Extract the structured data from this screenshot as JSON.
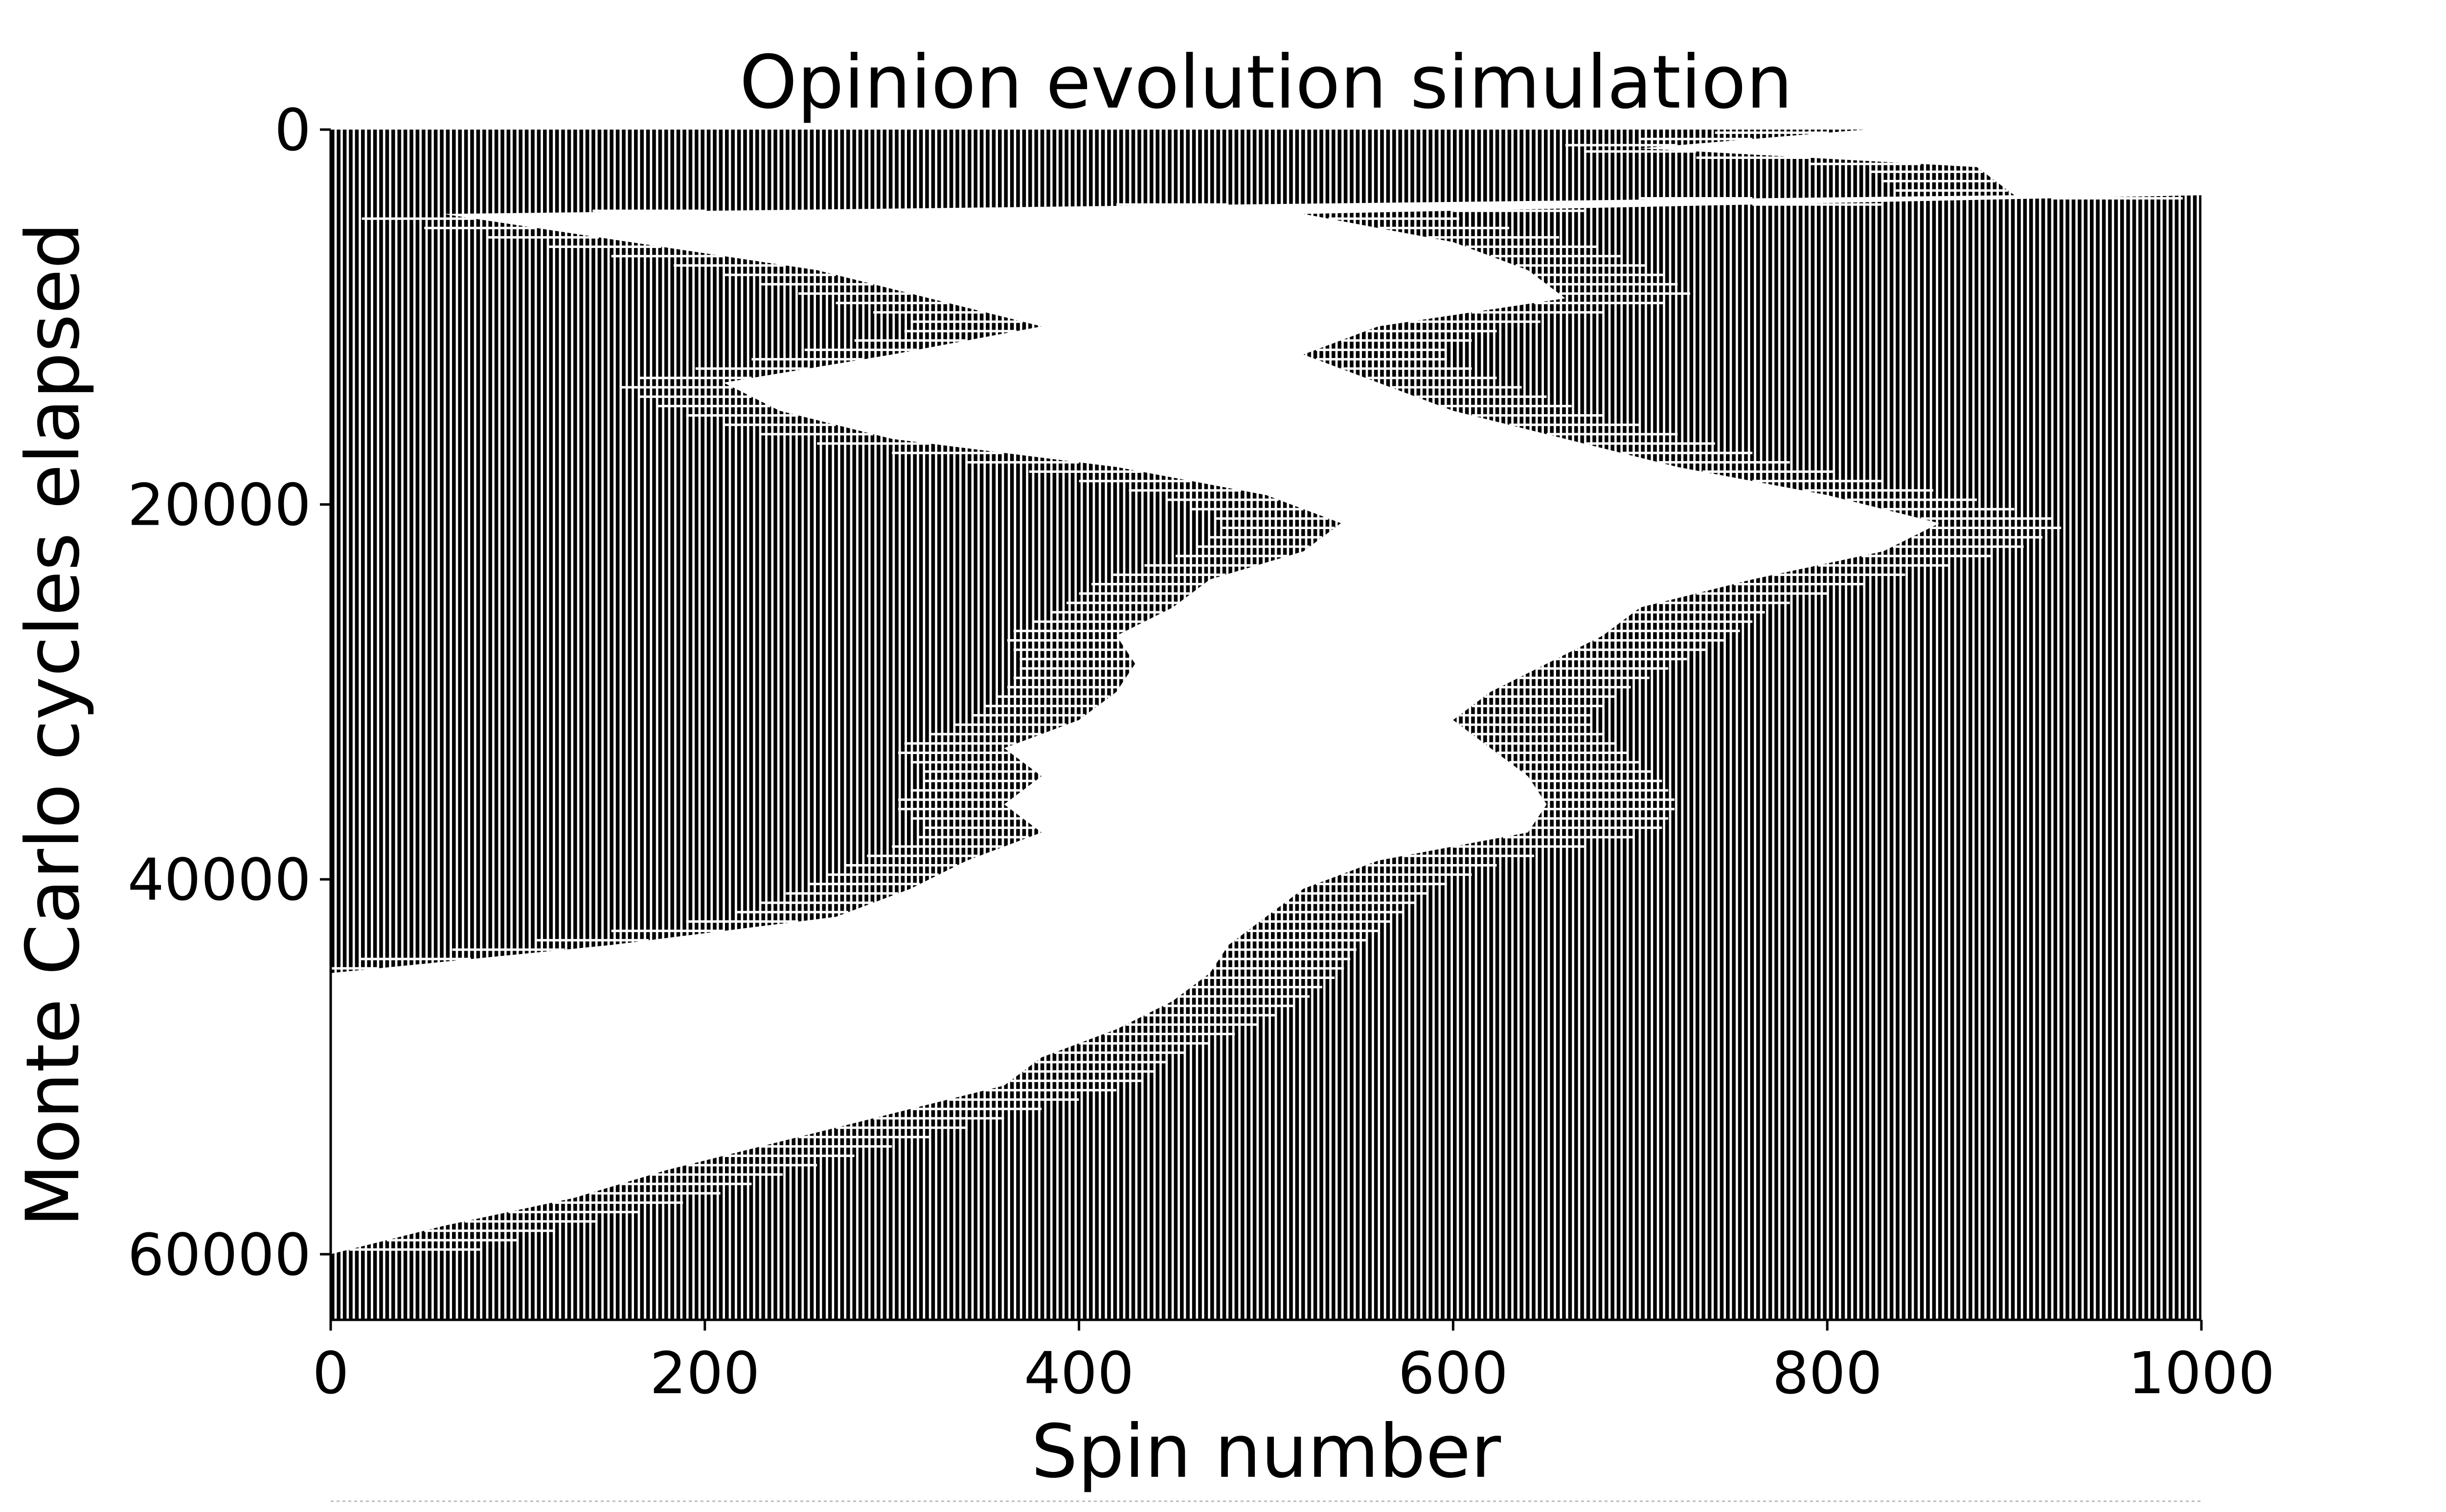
{
  "chart_data": {
    "type": "heatmap",
    "title": "Opinion evolution simulation",
    "xlabel": "Spin number",
    "ylabel": "Monte Carlo cycles elapsed",
    "xlim": [
      0,
      1000
    ],
    "ylim": [
      63500,
      0
    ],
    "y_axis_inverted": true,
    "xticks": [
      0,
      200,
      400,
      600,
      800,
      1000
    ],
    "xtick_labels": [
      "0",
      "200",
      "400",
      "600",
      "800",
      "1000"
    ],
    "yticks": [
      0,
      20000,
      40000,
      60000
    ],
    "ytick_labels": [
      "0",
      "20000",
      "40000",
      "60000"
    ],
    "grid": false,
    "legend": "none",
    "colors": {
      "spin_down": "#000000",
      "spin_up": "#ffffff",
      "axes": "#000000"
    },
    "white_domain_boundaries": {
      "description_of_series": "spin-up (white) region between left and right boundaries at each cycle",
      "cycles": [
        0,
        1000,
        2000,
        3500,
        4500,
        6000,
        7500,
        9000,
        10500,
        12000,
        13500,
        15000,
        16500,
        18000,
        19500,
        21000,
        22500,
        24000,
        25500,
        27000,
        28500,
        30000,
        31500,
        33000,
        34500,
        36000,
        37500,
        39000,
        40500,
        42000,
        43500,
        45000,
        46500,
        48000,
        49500,
        51000,
        52500,
        54000,
        55500,
        57000,
        58500,
        60000,
        61500,
        63500
      ],
      "left_spin": [
        820,
        700,
        880,
        900,
        60,
        160,
        260,
        320,
        380,
        300,
        210,
        240,
        300,
        420,
        500,
        540,
        520,
        470,
        450,
        420,
        430,
        420,
        400,
        360,
        380,
        360,
        380,
        340,
        310,
        270,
        150,
        0,
        0,
        0,
        0,
        0,
        0,
        0,
        0,
        0,
        0,
        0,
        0,
        0
      ],
      "right_spin": [
        1000,
        1000,
        1000,
        1000,
        520,
        600,
        640,
        660,
        560,
        520,
        560,
        600,
        660,
        720,
        800,
        860,
        830,
        760,
        700,
        680,
        650,
        620,
        600,
        620,
        640,
        650,
        640,
        560,
        520,
        500,
        480,
        470,
        450,
        420,
        380,
        360,
        300,
        240,
        180,
        130,
        60,
        0,
        0,
        0
      ]
    }
  }
}
